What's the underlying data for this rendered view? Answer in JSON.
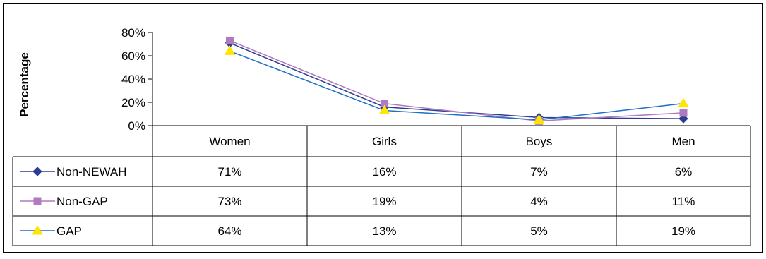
{
  "chart_data": {
    "type": "line",
    "ylabel": "Percentage",
    "ylim": [
      0,
      80
    ],
    "yticks": [
      "80%",
      "60%",
      "40%",
      "20%",
      "0%"
    ],
    "ytick_values": [
      80,
      60,
      40,
      20,
      0
    ],
    "categories": [
      "Women",
      "Girls",
      "Boys",
      "Men"
    ],
    "legend": "data-table-rows",
    "grid": false,
    "series": [
      {
        "name": "Non-NEWAH",
        "marker": "diamond",
        "color": "#2E3D8F",
        "values": [
          71,
          16,
          7,
          6
        ],
        "labels": [
          "71%",
          "16%",
          "7%",
          "6%"
        ]
      },
      {
        "name": "Non-GAP",
        "marker": "square",
        "color": "#B07AC0",
        "values": [
          73,
          19,
          4,
          11
        ],
        "labels": [
          "73%",
          "19%",
          "4%",
          "11%"
        ]
      },
      {
        "name": "GAP",
        "marker": "triangle",
        "color": "#1F6FC4",
        "values": [
          64,
          13,
          5,
          19
        ],
        "labels": [
          "64%",
          "13%",
          "5%",
          "19%"
        ]
      }
    ]
  }
}
